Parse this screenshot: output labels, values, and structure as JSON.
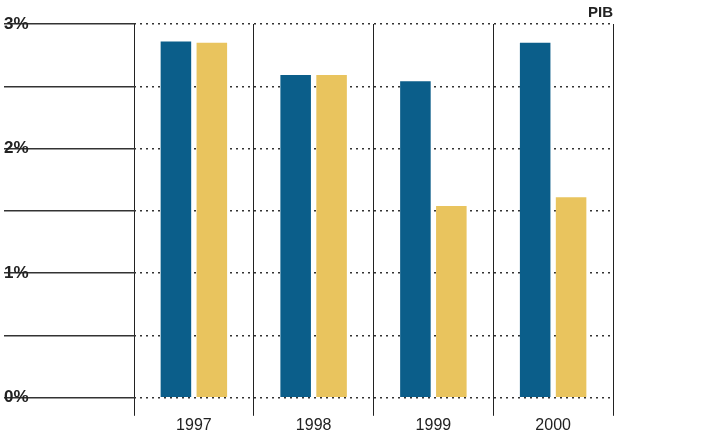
{
  "chart_data": {
    "type": "bar",
    "title": "PIB",
    "categories": [
      "1997",
      "1998",
      "1999",
      "2000"
    ],
    "series": [
      {
        "color": "#0b5e8a",
        "values": [
          2.86,
          2.59,
          2.54,
          2.85
        ]
      },
      {
        "color": "#e9c45e",
        "values": [
          2.85,
          2.59,
          1.54,
          1.61
        ]
      }
    ],
    "ylim": [
      0,
      3
    ],
    "yticks": [
      {
        "value": 0,
        "label": "0%"
      },
      {
        "value": 1,
        "label": "1%"
      },
      {
        "value": 2,
        "label": "2%"
      },
      {
        "value": 3,
        "label": "3%"
      }
    ],
    "grid": true
  }
}
